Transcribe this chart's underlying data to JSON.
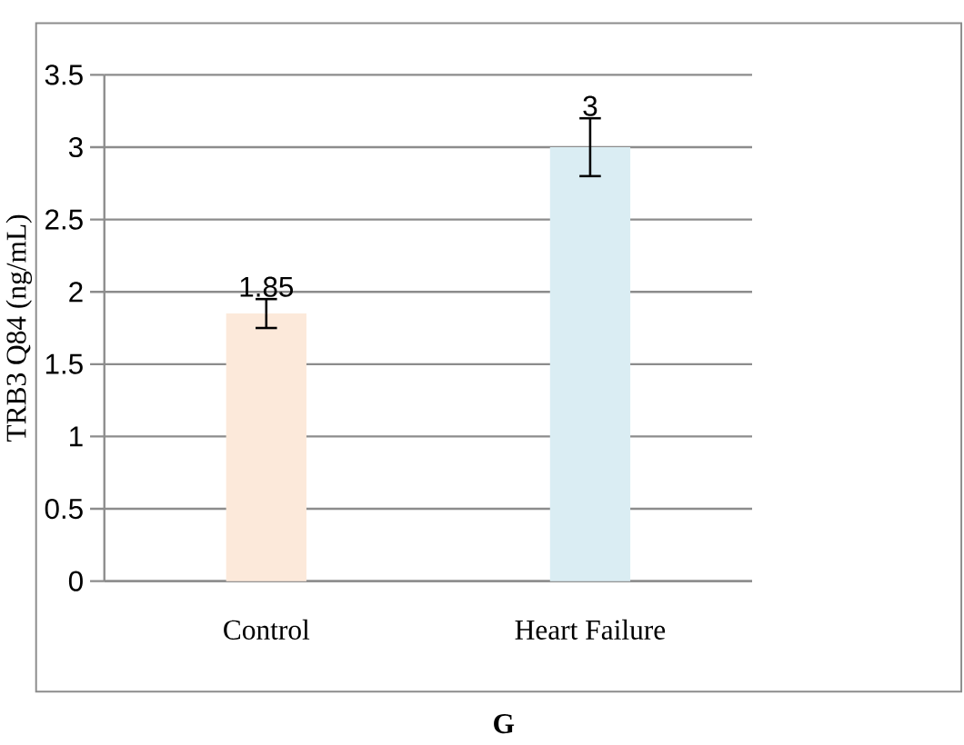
{
  "chart_data": {
    "type": "bar",
    "ylabel": "TRB3 Q84 (ng/mL)",
    "categories": [
      "Control",
      "Heart Failure"
    ],
    "values": [
      1.85,
      3
    ],
    "colors": [
      "#fce9da",
      "#daedf3"
    ],
    "errors": [
      0.1,
      0.2
    ],
    "ylim": [
      0,
      3.5
    ],
    "yticks": [
      0,
      0.5,
      1,
      1.5,
      2,
      2.5,
      3,
      3.5
    ],
    "grid": "y",
    "data_labels": true,
    "annotations": [
      "G"
    ]
  }
}
